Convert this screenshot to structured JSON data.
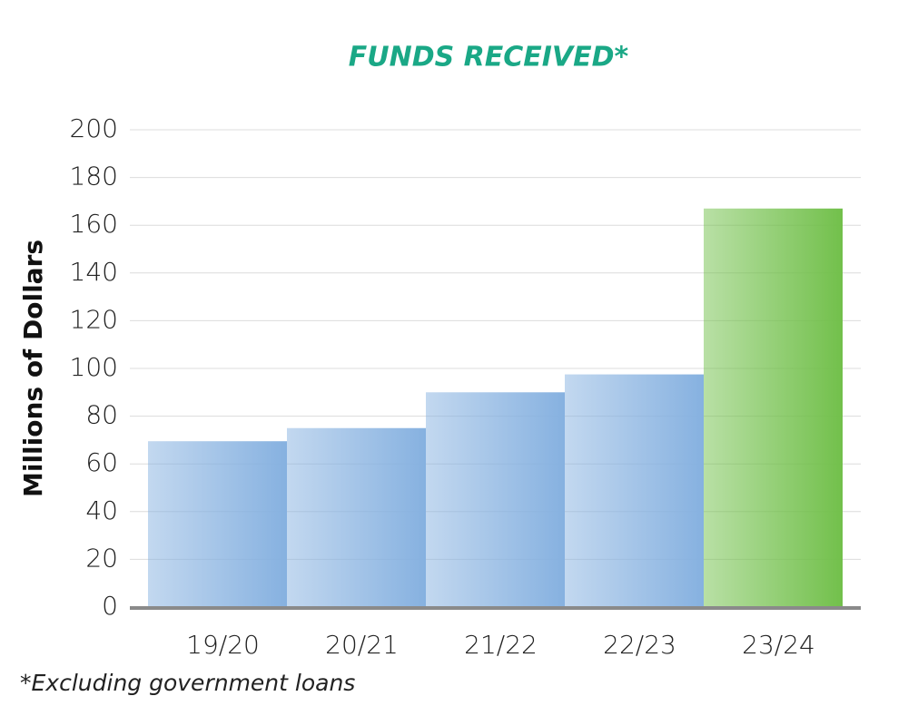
{
  "chart_data": {
    "type": "bar",
    "title": "FUNDS RECEIVED*",
    "y_label": "Millions of Dollars",
    "footnote": "*Excluding government loans",
    "categories": [
      "19/20",
      "20/21",
      "21/22",
      "22/23",
      "23/24"
    ],
    "values": [
      69.5,
      75,
      90,
      97.5,
      167
    ],
    "colors": [
      "#86b1e0",
      "#86b1e0",
      "#86b1e0",
      "#86b1e0",
      "#72c04b"
    ],
    "ylim": [
      0,
      200
    ],
    "yticks": [
      0,
      20,
      40,
      60,
      80,
      100,
      120,
      140,
      160,
      180,
      200
    ],
    "grid": true
  }
}
